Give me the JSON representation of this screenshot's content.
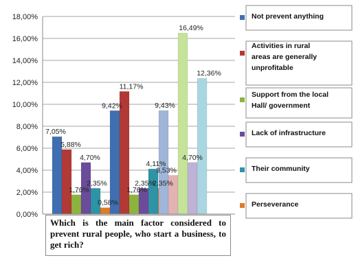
{
  "chart_data": {
    "type": "bar",
    "title": "",
    "xlabel": "",
    "ylabel": "",
    "ylim": [
      0,
      18
    ],
    "y_tick_values": [
      0,
      2,
      4,
      6,
      8,
      10,
      12,
      14,
      16,
      18
    ],
    "y_tick_labels": [
      "0,00%",
      "2,00%",
      "4,00%",
      "6,00%",
      "8,00%",
      "10,00%",
      "12,00%",
      "14,00%",
      "16,00%",
      "18,00%"
    ],
    "grid": true,
    "legend_position": "right",
    "group_count": 3,
    "series": [
      {
        "name": "Not prevent anything",
        "color": "#3f6fb0",
        "pale_color": "#9fb6d9",
        "values": [
          7.05,
          9.42,
          9.43
        ],
        "labels": [
          "7,05%",
          "9,42%",
          "9,43%"
        ]
      },
      {
        "name": "Activities in rural areas are generally unprofitable",
        "color": "#b23a36",
        "pale_color": "#e2b3b1",
        "values": [
          5.88,
          11.17,
          3.53
        ],
        "labels": [
          "5,88%",
          "11,17%",
          "3,53%"
        ]
      },
      {
        "name": "Support from the local Hall/ government",
        "color": "#8db33f",
        "pale_color": "#c6e39a",
        "values": [
          1.76,
          1.76,
          16.49
        ],
        "labels": [
          "1,76%",
          "1,76%",
          "16,49%"
        ]
      },
      {
        "name": "Lack of infrastructure",
        "color": "#6b4c9a",
        "pale_color": "#bfb2d6",
        "values": [
          4.7,
          2.35,
          4.7
        ],
        "labels": [
          "4,70%",
          "2,35%",
          "4,70%"
        ]
      },
      {
        "name": "Their community",
        "color": "#2f93a6",
        "pale_color": "#a9d6e0",
        "values": [
          2.35,
          4.11,
          12.36
        ],
        "labels": [
          "2,35%",
          "4,11%",
          "12,36%"
        ]
      },
      {
        "name": "Perseverance",
        "color": "#e07b25",
        "pale_color": "#f2c29a",
        "values": [
          0.58,
          2.35,
          0
        ],
        "labels": [
          "0,58%",
          "2,35%",
          ""
        ]
      }
    ]
  },
  "caption": {
    "text": "Which is the main factor considered to prevent rural people, who start a business, to get rich?"
  }
}
